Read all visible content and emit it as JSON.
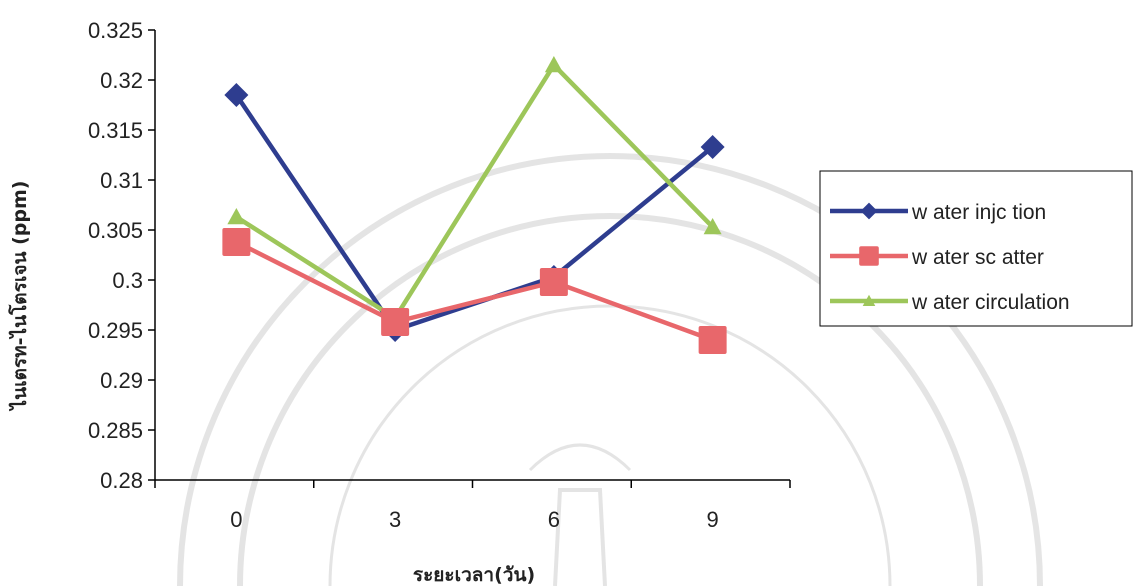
{
  "chart_data": {
    "type": "line",
    "title": "",
    "xlabel": "ระยะเวลา(วัน)",
    "ylabel": "ไนเตรท-ไนโตรเจน (ppm)",
    "categories": [
      "0",
      "3",
      "6",
      "9"
    ],
    "ylim": [
      0.28,
      0.325
    ],
    "ytick_step": 0.005,
    "yticks": [
      "0.28",
      "0.285",
      "0.29",
      "0.295",
      "0.3",
      "0.305",
      "0.31",
      "0.315",
      "0.32",
      "0.325"
    ],
    "grid": false,
    "legend_position": "right",
    "series": [
      {
        "name": "w ater injc tion",
        "color": "#2E3D8F",
        "marker": "diamond",
        "values": [
          0.3185,
          0.295,
          0.3003,
          0.3133
        ]
      },
      {
        "name": "w ater sc atter",
        "color": "#E8676B",
        "marker": "square",
        "values": [
          0.3038,
          0.2958,
          0.2998,
          0.294
        ]
      },
      {
        "name": "w ater circulation",
        "color": "#9DC65A",
        "marker": "triangle",
        "values": [
          0.3063,
          0.2962,
          0.3215,
          0.3053
        ]
      }
    ]
  }
}
